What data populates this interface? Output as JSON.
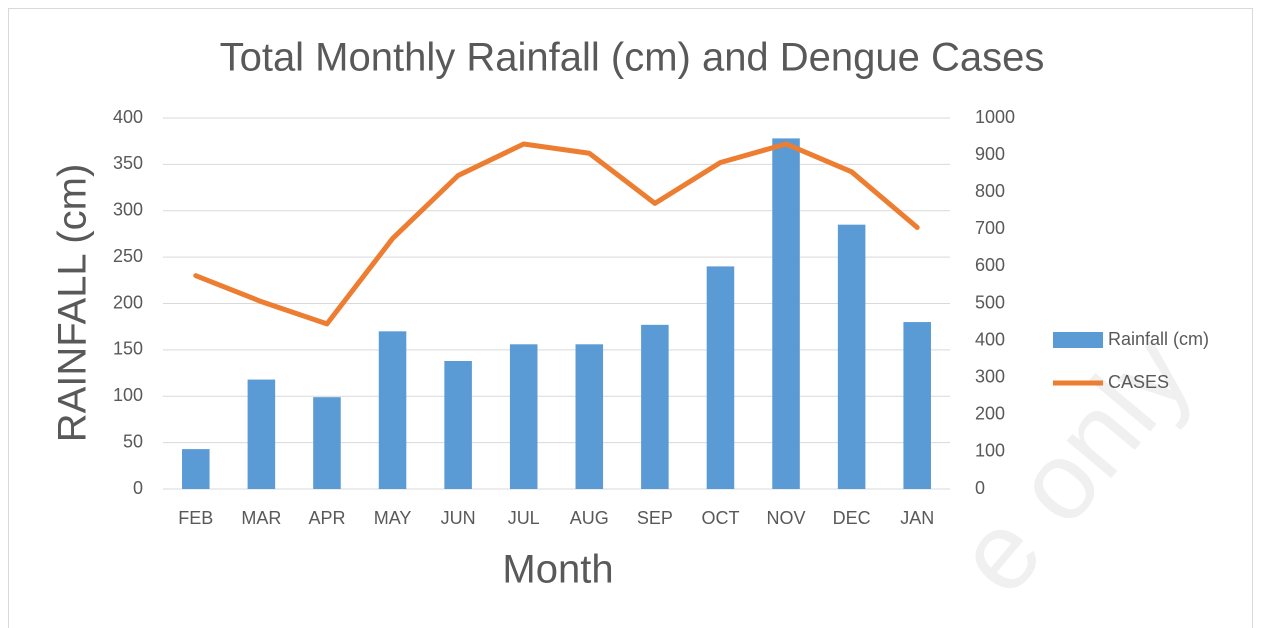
{
  "chart_data": {
    "type": "bar",
    "title": "Total Monthly Rainfall (cm) and Dengue Cases",
    "x_label": "Month",
    "y_label": "RAINFALL (cm)",
    "categories": [
      "FEB",
      "MAR",
      "APR",
      "MAY",
      "JUN",
      "JUL",
      "AUG",
      "SEP",
      "OCT",
      "NOV",
      "DEC",
      "JAN"
    ],
    "series": [
      {
        "name": "Rainfall (cm)",
        "type": "bar",
        "color": "#5b9bd5",
        "values": [
          43,
          118,
          99,
          170,
          138,
          156,
          156,
          177,
          240,
          378,
          285,
          180
        ]
      },
      {
        "name": "CASES",
        "type": "line",
        "axis": "y2",
        "color": "#ed7d31",
        "values": [
          575,
          505,
          445,
          675,
          845,
          930,
          905,
          770,
          880,
          930,
          855,
          705
        ]
      }
    ],
    "ylim": [
      0,
      400
    ],
    "yticks": [
      0,
      50,
      100,
      150,
      200,
      250,
      300,
      350,
      400
    ],
    "y2lim": [
      0,
      1000
    ],
    "y2ticks": [
      0,
      100,
      200,
      300,
      400,
      500,
      600,
      700,
      800,
      900,
      1000
    ],
    "grid": true,
    "legend": "right",
    "watermark": "e only"
  }
}
